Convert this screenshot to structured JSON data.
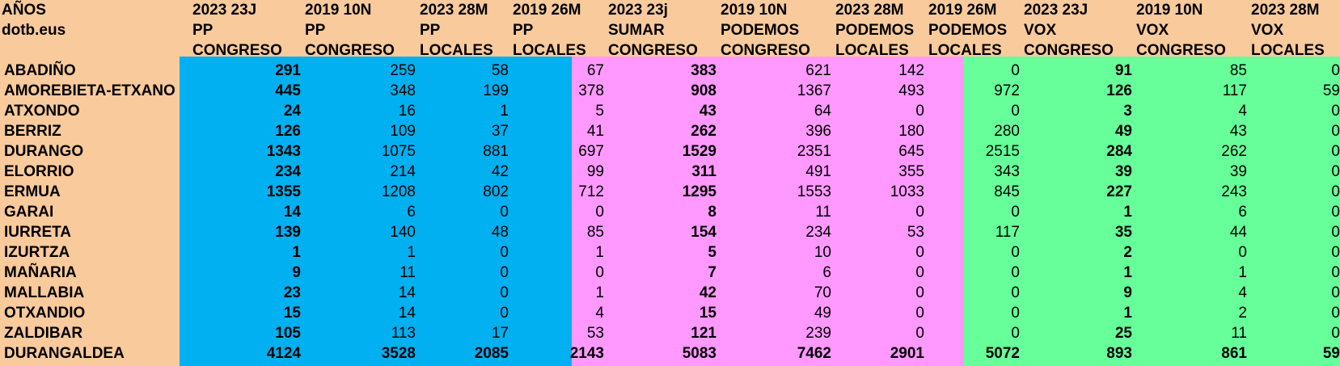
{
  "colors": {
    "background": "#f9ca9c",
    "pp": "#00b0f0",
    "sumar": "#ff99ff",
    "vox": "#66ff99"
  },
  "header": {
    "row0_label": "AÑOS",
    "row1_label": "dotb.eus",
    "columns": [
      {
        "year": "2023 23J",
        "party": "PP",
        "type": "CONGRESO"
      },
      {
        "year": "2019 10N",
        "party": "PP",
        "type": "CONGRESO"
      },
      {
        "year": "2023 28M",
        "party": "PP",
        "type": "LOCALES"
      },
      {
        "year": "2019 26M",
        "party": "PP",
        "type": "LOCALES"
      },
      {
        "year": "2023 23j",
        "party": "SUMAR",
        "type": "CONGRESO"
      },
      {
        "year": "2019 10N",
        "party": "PODEMOS",
        "type": "CONGRESO"
      },
      {
        "year": "2023 28M",
        "party": "PODEMOS",
        "type": "LOCALES"
      },
      {
        "year": "2019 26M",
        "party": "PODEMOS",
        "type": "LOCALES"
      },
      {
        "year": "2023 23J",
        "party": "VOX",
        "type": "CONGRESO"
      },
      {
        "year": "2019 10N",
        "party": "VOX",
        "type": "CONGRESO"
      },
      {
        "year": "2023 28M",
        "party": "VOX",
        "type": "LOCALES"
      }
    ]
  },
  "rows": [
    {
      "name": "ABADIÑO",
      "values": [
        "291",
        "259",
        "58",
        "67",
        "383",
        "621",
        "142",
        "0",
        "91",
        "85",
        "0"
      ]
    },
    {
      "name": "AMOREBIETA-ETXANO",
      "values": [
        "445",
        "348",
        "199",
        "378",
        "908",
        "1367",
        "493",
        "972",
        "126",
        "117",
        "59"
      ]
    },
    {
      "name": "ATXONDO",
      "values": [
        "24",
        "16",
        "1",
        "5",
        "43",
        "64",
        "0",
        "0",
        "3",
        "4",
        "0"
      ]
    },
    {
      "name": "BERRIZ",
      "values": [
        "126",
        "109",
        "37",
        "41",
        "262",
        "396",
        "180",
        "280",
        "49",
        "43",
        "0"
      ]
    },
    {
      "name": "DURANGO",
      "values": [
        "1343",
        "1075",
        "881",
        "697",
        "1529",
        "2351",
        "645",
        "2515",
        "284",
        "262",
        "0"
      ]
    },
    {
      "name": "ELORRIO",
      "values": [
        "234",
        "214",
        "42",
        "99",
        "311",
        "491",
        "355",
        "343",
        "39",
        "39",
        "0"
      ]
    },
    {
      "name": "ERMUA",
      "values": [
        "1355",
        "1208",
        "802",
        "712",
        "1295",
        "1553",
        "1033",
        "845",
        "227",
        "243",
        "0"
      ]
    },
    {
      "name": "GARAI",
      "values": [
        "14",
        "6",
        "0",
        "0",
        "8",
        "11",
        "0",
        "0",
        "1",
        "6",
        "0"
      ]
    },
    {
      "name": "IURRETA",
      "values": [
        "139",
        "140",
        "48",
        "85",
        "154",
        "234",
        "53",
        "117",
        "35",
        "44",
        "0"
      ]
    },
    {
      "name": "IZURTZA",
      "values": [
        "1",
        "1",
        "0",
        "1",
        "5",
        "10",
        "0",
        "0",
        "2",
        "0",
        "0"
      ]
    },
    {
      "name": "MAÑARIA",
      "values": [
        "9",
        "11",
        "0",
        "0",
        "7",
        "6",
        "0",
        "0",
        "1",
        "1",
        "0"
      ]
    },
    {
      "name": "MALLABIA",
      "values": [
        "23",
        "14",
        "0",
        "1",
        "42",
        "70",
        "0",
        "0",
        "9",
        "4",
        "0"
      ]
    },
    {
      "name": "OTXANDIO",
      "values": [
        "15",
        "14",
        "0",
        "4",
        "15",
        "49",
        "0",
        "0",
        "1",
        "2",
        "0"
      ]
    },
    {
      "name": "ZALDIBAR",
      "values": [
        "105",
        "113",
        "17",
        "53",
        "121",
        "239",
        "0",
        "0",
        "25",
        "11",
        "0"
      ]
    }
  ],
  "total": {
    "name": "DURANGALDEA",
    "values": [
      "4124",
      "3528",
      "2085",
      "2143",
      "5083",
      "7462",
      "2901",
      "5072",
      "893",
      "861",
      "59"
    ]
  }
}
